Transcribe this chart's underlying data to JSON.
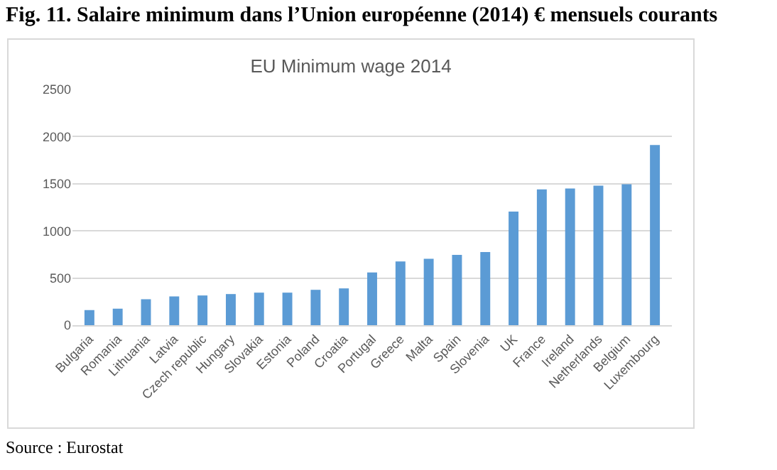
{
  "chart_data": {
    "type": "bar",
    "title": "Fig. 11. Salaire minimum dans l’Union européenne (2014) € mensuels courants",
    "subtitle": "EU Minimum wage 2014",
    "categories": [
      "Bulgaria",
      "Romania",
      "Lithuania",
      "Latvia",
      "Czech republic",
      "Hungary",
      "Slovakia",
      "Estonia",
      "Poland",
      "Croatia",
      "Portugal",
      "Greece",
      "Malta",
      "Spain",
      "Slovenia",
      "UK",
      "France",
      "Ireland",
      "Netherlands",
      "Belgium",
      "Luxembourg"
    ],
    "values": [
      160,
      175,
      275,
      305,
      315,
      330,
      345,
      345,
      375,
      390,
      560,
      675,
      705,
      745,
      775,
      1205,
      1440,
      1450,
      1480,
      1495,
      1910
    ],
    "color": "#5b9bd5",
    "ylim": [
      0,
      2500
    ],
    "yticks": [
      0,
      500,
      1000,
      1500,
      2000,
      2500
    ],
    "grid": "y",
    "annotations": [
      "Source : Eurostat"
    ]
  }
}
